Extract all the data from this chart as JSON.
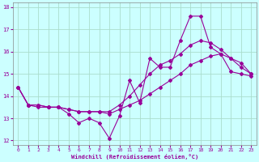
{
  "x": [
    0,
    1,
    2,
    3,
    4,
    5,
    6,
    7,
    8,
    9,
    10,
    11,
    12,
    13,
    14,
    15,
    16,
    17,
    18,
    19,
    20,
    21,
    22,
    23
  ],
  "line_jagged": [
    14.4,
    13.6,
    13.5,
    13.5,
    13.5,
    13.2,
    12.8,
    13.0,
    12.8,
    12.1,
    13.1,
    14.7,
    13.7,
    15.7,
    15.3,
    15.3,
    16.5,
    17.6,
    17.6,
    16.2,
    15.9,
    15.1,
    15.0,
    14.9
  ],
  "line_trend1": [
    14.4,
    13.6,
    13.6,
    13.5,
    13.5,
    13.4,
    13.3,
    13.3,
    13.3,
    13.2,
    13.4,
    13.6,
    13.8,
    14.1,
    14.4,
    14.7,
    15.0,
    15.4,
    15.6,
    15.8,
    15.9,
    15.7,
    15.5,
    15.0
  ],
  "line_trend2": [
    14.4,
    13.6,
    13.6,
    13.5,
    13.5,
    13.4,
    13.3,
    13.3,
    13.3,
    13.3,
    13.6,
    14.0,
    14.5,
    15.0,
    15.4,
    15.6,
    15.9,
    16.3,
    16.5,
    16.4,
    16.1,
    15.7,
    15.3,
    15.0
  ],
  "line_color": "#990099",
  "bg_color": "#ccffff",
  "grid_color": "#aaddcc",
  "xlabel": "Windchill (Refroidissement éolien,°C)",
  "ylim": [
    11.8,
    18.2
  ],
  "xlim": [
    -0.5,
    23.5
  ],
  "yticks": [
    12,
    13,
    14,
    15,
    16,
    17,
    18
  ],
  "xticks": [
    0,
    1,
    2,
    3,
    4,
    5,
    6,
    7,
    8,
    9,
    10,
    11,
    12,
    13,
    14,
    15,
    16,
    17,
    18,
    19,
    20,
    21,
    22,
    23
  ],
  "figwidth": 3.2,
  "figheight": 2.0,
  "dpi": 100
}
